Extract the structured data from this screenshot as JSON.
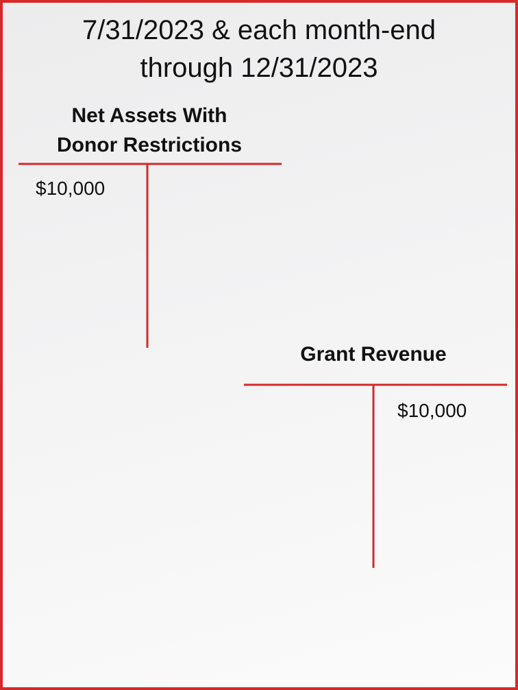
{
  "title_lines": [
    "7/31/2023 & each month-end",
    "through 12/31/2023"
  ],
  "accounts": [
    {
      "name_lines": [
        "Net Assets With",
        "Donor Restrictions"
      ],
      "debit": "$10,000"
    },
    {
      "name_lines": [
        "Grant Revenue"
      ],
      "credit": "$10,000"
    }
  ]
}
